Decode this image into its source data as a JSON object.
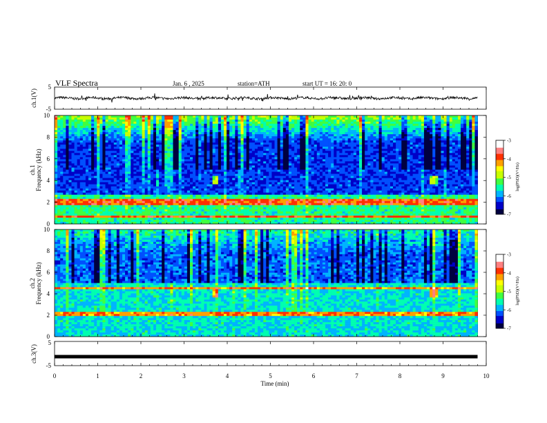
{
  "header": {
    "title": "VLF  Spectra",
    "date": "Jan.  6   , 2025",
    "station": "station=ATH",
    "start_ut": "start  UT  =    16: 20: 0"
  },
  "chart_data": [
    {
      "type": "line",
      "name": "ch1-waveform",
      "ylabel": "ch.1(V)",
      "yticks": [
        "5",
        "-5"
      ],
      "ylim": [
        -5,
        5
      ],
      "xlim": [
        0,
        10
      ],
      "data_end_min": 9.8,
      "description_of_signal": "noisy waveform oscillating around 0 V with amplitude roughly ±0.6 V and sparse spikes"
    },
    {
      "type": "heatmap",
      "name": "ch1-spectrogram",
      "ylabel": "ch.1\nFrequency (kHz)",
      "ylabel_line1": "ch.1",
      "ylabel_line2": "Frequency  (kHz)",
      "yticks": [
        "0",
        "2",
        "4",
        "6",
        "8",
        "10"
      ],
      "ylim": [
        0,
        10
      ],
      "xlim": [
        0,
        10
      ],
      "data_end_min": 9.8,
      "colorbar": {
        "label": "log(PSD)(V²/Hz)",
        "ticks": [
          "-3",
          "-4",
          "-5",
          "-6",
          "-7"
        ],
        "range": [
          -7,
          -3
        ]
      },
      "features": {
        "bands_khz": [
          0.7,
          1.8,
          2.1
        ],
        "bursts_min": [
          3.7,
          8.75
        ],
        "burst_band_khz": 4.0
      }
    },
    {
      "type": "heatmap",
      "name": "ch2-spectrogram",
      "ylabel_line1": "ch.2",
      "ylabel_line2": "Frequency  (kHz)",
      "yticks": [
        "0",
        "2",
        "4",
        "6",
        "8",
        "10"
      ],
      "ylim": [
        0,
        10
      ],
      "xlim": [
        0,
        10
      ],
      "data_end_min": 9.8,
      "colorbar": {
        "label": "log(PSD)(V²/Hz)",
        "ticks": [
          "-3",
          "-4",
          "-5",
          "-6",
          "-7"
        ],
        "range": [
          -7,
          -3
        ]
      },
      "features": {
        "bands_khz": [
          2.1,
          4.5
        ],
        "bursts_min": [
          3.7,
          8.75
        ],
        "burst_band_khz": 4.0
      }
    },
    {
      "type": "line",
      "name": "ch3-waveform",
      "ylabel": "ch.3(V)",
      "yticks": [
        "5",
        "-5"
      ],
      "ylim": [
        -5,
        5
      ],
      "xlim": [
        0,
        10
      ],
      "data_end_min": 9.8,
      "level_v": -1.3
    }
  ],
  "xaxis": {
    "label": "Time  (min)",
    "ticks": [
      "0",
      "1",
      "2",
      "3",
      "4",
      "5",
      "6",
      "7",
      "8",
      "9",
      "10"
    ]
  },
  "colors": {
    "colormap": [
      "#000040",
      "#0000c8",
      "#0050ff",
      "#00b4ff",
      "#00ffb0",
      "#40ff40",
      "#c8ff00",
      "#ffff00",
      "#ffa000",
      "#ff3000",
      "#ff8080",
      "#ffffff"
    ]
  }
}
